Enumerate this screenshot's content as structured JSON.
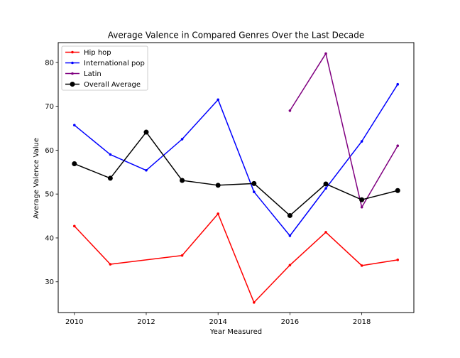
{
  "chart_data": {
    "type": "line",
    "title": "Average Valence in Compared Genres Over the Last Decade",
    "xlabel": "Year Measured",
    "ylabel": "Average Valence Value",
    "xlim": [
      2009.55,
      2019.45
    ],
    "ylim": [
      23.0,
      84.5
    ],
    "xticks": [
      2010,
      2012,
      2014,
      2016,
      2018
    ],
    "yticks": [
      30,
      40,
      50,
      60,
      70,
      80
    ],
    "grid": false,
    "legend": "top-left",
    "series": [
      {
        "name": "Hip hop",
        "color": "#ff0000",
        "marker": "small",
        "points": [
          [
            2010,
            42.7
          ],
          [
            2011,
            34.0
          ],
          [
            2013,
            36.0
          ],
          [
            2014,
            45.5
          ],
          [
            2015,
            25.3
          ],
          [
            2016,
            33.8
          ],
          [
            2017,
            41.3
          ],
          [
            2018,
            33.7
          ],
          [
            2019,
            35.0
          ]
        ]
      },
      {
        "name": "International pop",
        "color": "#0000ff",
        "marker": "small",
        "points": [
          [
            2010,
            65.7
          ],
          [
            2011,
            59.0
          ],
          [
            2012,
            55.4
          ],
          [
            2013,
            62.5
          ],
          [
            2014,
            71.5
          ],
          [
            2015,
            50.5
          ],
          [
            2016,
            40.5
          ],
          [
            2017,
            51.3
          ],
          [
            2018,
            62.0
          ],
          [
            2019,
            75.0
          ]
        ]
      },
      {
        "name": "Latin",
        "color": "#800080",
        "marker": "small",
        "points": [
          [
            2016,
            69.0
          ],
          [
            2017,
            82.0
          ],
          [
            2018,
            47.0
          ],
          [
            2019,
            61.0
          ]
        ]
      },
      {
        "name": "Overall Average",
        "color": "#000000",
        "marker": "large",
        "points": [
          [
            2010,
            56.9
          ],
          [
            2011,
            53.6
          ],
          [
            2012,
            64.1
          ],
          [
            2013,
            53.1
          ],
          [
            2014,
            52.0
          ],
          [
            2015,
            52.4
          ],
          [
            2016,
            45.1
          ],
          [
            2017,
            52.3
          ],
          [
            2018,
            48.7
          ],
          [
            2019,
            50.8
          ]
        ]
      }
    ]
  }
}
